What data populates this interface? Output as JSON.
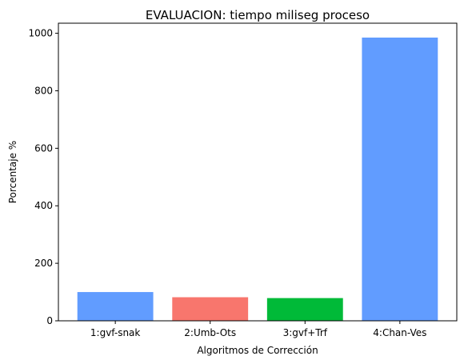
{
  "chart_data": {
    "type": "bar",
    "title": "EVALUACION: tiempo miliseg proceso",
    "xlabel": "Algoritmos de Corrección",
    "ylabel": "Porcentaje %",
    "categories": [
      "1:gvf-snak",
      "2:Umb-Ots",
      "3:gvf+Trf",
      "4:Chan-Ves"
    ],
    "values": [
      100,
      82,
      79,
      985
    ],
    "colors": [
      "#619cff",
      "#f8766d",
      "#00ba38",
      "#619cff"
    ],
    "ylim": [
      0,
      1035
    ],
    "yticks": [
      0,
      200,
      400,
      600,
      800,
      1000
    ],
    "grid": false,
    "legend": "none"
  }
}
